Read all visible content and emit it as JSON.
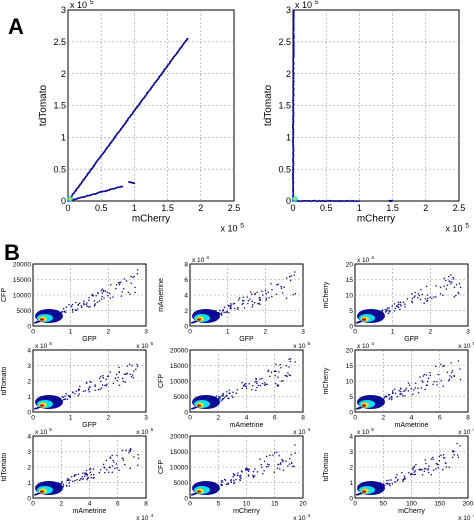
{
  "panel_labels": {
    "a": "A",
    "b": "B"
  },
  "colors": {
    "point": "#0a0a8c",
    "grid": "#9a9a9a",
    "axis": "#000000",
    "density": [
      "#00008f",
      "#0050ff",
      "#00e0ff",
      "#a0ff50",
      "#ffe000",
      "#ff5000",
      "#c00000"
    ]
  },
  "chart_data": [
    {
      "panel": "A",
      "type": "scatter",
      "xlabel": "mCherry",
      "ylabel": "tdTomato",
      "xlim": [
        0,
        2.5
      ],
      "ylim": [
        0,
        3
      ],
      "x_exponent": "x 10^5",
      "y_exponent": "x 10^5",
      "xticks": [
        "0",
        "0.5",
        "1",
        "1.5",
        "2",
        "2.5"
      ],
      "yticks": [
        "0",
        "0.5",
        "1",
        "1.5",
        "2",
        "2.5",
        "3"
      ],
      "grid": true,
      "series": [
        {
          "points": [
            [
              0.0,
              0.0
            ],
            [
              1.8,
              2.55
            ]
          ]
        },
        {
          "points": [
            [
              0.0,
              0.0
            ],
            [
              0.82,
              0.23
            ]
          ]
        },
        {
          "points": [
            [
              0.92,
              0.3
            ],
            [
              1.0,
              0.28
            ]
          ]
        }
      ]
    },
    {
      "panel": "A",
      "type": "scatter",
      "xlabel": "mCherry",
      "ylabel": "tdTomato",
      "xlim": [
        0,
        2.5
      ],
      "ylim": [
        0,
        3
      ],
      "x_exponent": "x 10^5",
      "y_exponent": "x 10^5",
      "xticks": [
        "0",
        "0.5",
        "1",
        "1.5",
        "2",
        "2.5"
      ],
      "yticks": [
        "0",
        "0.5",
        "1",
        "1.5",
        "2",
        "2.5",
        "3"
      ],
      "grid": true,
      "series": [
        {
          "points": [
            [
              0.0,
              0.0
            ],
            [
              0.01,
              3.0
            ]
          ]
        },
        {
          "points": [
            [
              0.0,
              0.0
            ],
            [
              1.0,
              0.0
            ]
          ]
        },
        {
          "points": [
            [
              1.45,
              0.0
            ],
            [
              1.5,
              0.0
            ]
          ]
        }
      ]
    },
    {
      "panel": "B",
      "type": "scatter",
      "xlabel": "GFP",
      "ylabel": "CFP",
      "xlim": [
        0,
        3
      ],
      "ylim": [
        0,
        20000
      ],
      "x_exponent": "x 10^5",
      "y_exponent": "",
      "xticks": [
        "0",
        "1",
        "2",
        "3"
      ],
      "yticks": [
        "0",
        "5000",
        "10000",
        "15000",
        "20000"
      ],
      "grid": true
    },
    {
      "panel": "B",
      "type": "scatter",
      "xlabel": "GFP",
      "ylabel": "mAmetrine",
      "xlim": [
        0,
        3
      ],
      "ylim": [
        0,
        8
      ],
      "x_exponent": "x 10^5",
      "y_exponent": "x 10^4",
      "xticks": [
        "0",
        "1",
        "2",
        "3"
      ],
      "yticks": [
        "0",
        "2",
        "4",
        "6",
        "8"
      ],
      "grid": true
    },
    {
      "panel": "B",
      "type": "scatter",
      "xlabel": "GFP",
      "ylabel": "mCherry",
      "xlim": [
        0,
        3
      ],
      "ylim": [
        0,
        20
      ],
      "x_exponent": "x 10^5",
      "y_exponent": "x 10^4",
      "xticks": [
        "0",
        "1",
        "2",
        "3"
      ],
      "yticks": [
        "0",
        "5",
        "10",
        "15",
        "20"
      ],
      "grid": true
    },
    {
      "panel": "B",
      "type": "scatter",
      "xlabel": "GFP",
      "ylabel": "tdTomato",
      "xlim": [
        0,
        3
      ],
      "ylim": [
        0,
        4
      ],
      "x_exponent": "x 10^5",
      "y_exponent": "x 10^5",
      "xticks": [
        "0",
        "1",
        "2",
        "3"
      ],
      "yticks": [
        "0",
        "1",
        "2",
        "3",
        "4"
      ],
      "grid": true
    },
    {
      "panel": "B",
      "type": "scatter",
      "xlabel": "mAmetrine",
      "ylabel": "CFP",
      "xlim": [
        0,
        8
      ],
      "ylim": [
        0,
        20000
      ],
      "x_exponent": "x 10^4",
      "y_exponent": "",
      "xticks": [
        "0",
        "2",
        "4",
        "6",
        "8"
      ],
      "yticks": [
        "0",
        "5000",
        "10000",
        "15000",
        "20000"
      ],
      "grid": true
    },
    {
      "panel": "B",
      "type": "scatter",
      "xlabel": "mAmetrine",
      "ylabel": "mCherry",
      "xlim": [
        0,
        8
      ],
      "ylim": [
        0,
        20
      ],
      "x_exponent": "x 10^4",
      "y_exponent": "x 10^4",
      "xticks": [
        "0",
        "2",
        "4",
        "6",
        "8"
      ],
      "yticks": [
        "0",
        "5",
        "10",
        "15",
        "20"
      ],
      "grid": true
    },
    {
      "panel": "B",
      "type": "scatter",
      "xlabel": "mAmetrine",
      "ylabel": "tdTomato",
      "xlim": [
        0,
        8
      ],
      "ylim": [
        0,
        4
      ],
      "x_exponent": "x 10^4",
      "y_exponent": "x 10^5",
      "xticks": [
        "0",
        "2",
        "4",
        "6",
        "8"
      ],
      "yticks": [
        "0",
        "1",
        "2",
        "3",
        "4"
      ],
      "grid": true
    },
    {
      "panel": "B",
      "type": "scatter",
      "xlabel": "mCherry",
      "ylabel": "CFP",
      "xlim": [
        0,
        20
      ],
      "ylim": [
        0,
        20000
      ],
      "x_exponent": "x 10^4",
      "y_exponent": "",
      "xticks": [
        "0",
        "5",
        "10",
        "15",
        "20"
      ],
      "yticks": [
        "0",
        "5000",
        "10000",
        "15000",
        "20000"
      ],
      "grid": true
    },
    {
      "panel": "B",
      "type": "scatter",
      "xlabel": "mCherry",
      "ylabel": "tdTomato",
      "xlim": [
        0,
        200
      ],
      "ylim": [
        0,
        4
      ],
      "x_exponent": "x 10^4",
      "y_exponent": "x 10^5",
      "xticks": [
        "0",
        "50",
        "100",
        "150",
        "200"
      ],
      "yticks": [
        "0",
        "1",
        "2",
        "3",
        "4"
      ],
      "grid": true
    }
  ]
}
